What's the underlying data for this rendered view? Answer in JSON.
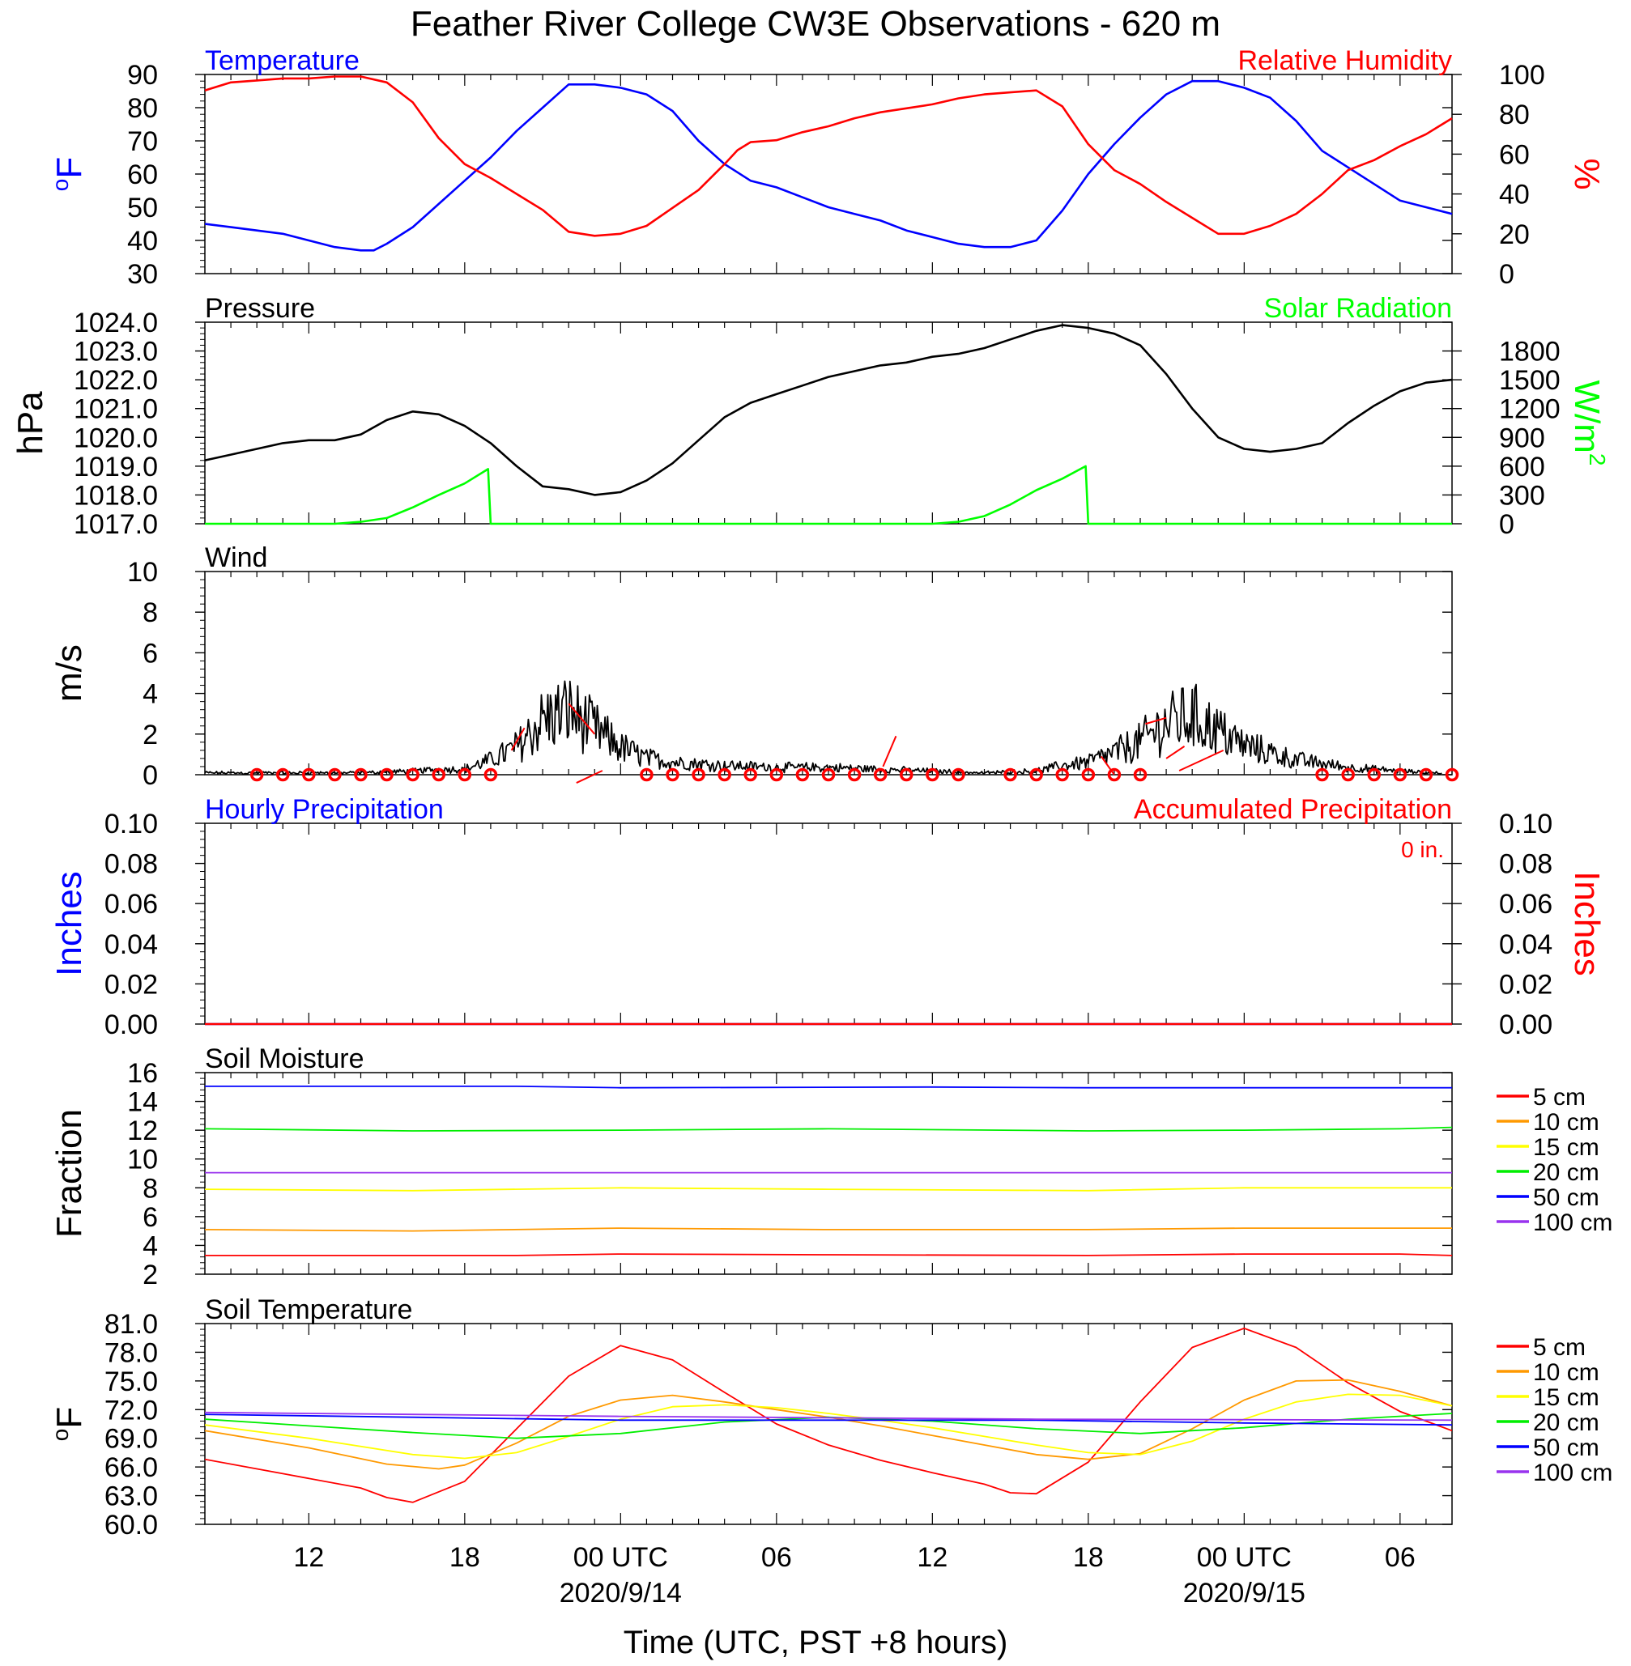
{
  "figure": {
    "title": "Feather River College CW3E Observations - 620 m",
    "xlabel": "Time (UTC, PST +8 hours)",
    "time_ticks": [
      {
        "t": 6,
        "label": "12",
        "date": ""
      },
      {
        "t": 12,
        "label": "18",
        "date": ""
      },
      {
        "t": 18,
        "label": "00 UTC",
        "date": "2020/9/14"
      },
      {
        "t": 24,
        "label": "06",
        "date": ""
      },
      {
        "t": 30,
        "label": "12",
        "date": ""
      },
      {
        "t": 36,
        "label": "18",
        "date": ""
      },
      {
        "t": 42,
        "label": "00 UTC",
        "date": "2020/9/15"
      },
      {
        "t": 48,
        "label": "06",
        "date": ""
      }
    ]
  },
  "colors": {
    "temperature": "#0000ff",
    "humidity": "#ff0000",
    "pressure": "#000000",
    "solar": "#00ff00",
    "wind": "#000000",
    "barb": "#ff0000",
    "calm": "#ff0000",
    "hourly_precip": "#0000ff",
    "accum_precip": "#ff0000",
    "depth_5cm": "#ff0000",
    "depth_10cm": "#ff9900",
    "depth_15cm": "#ffff00",
    "depth_20cm": "#00ee00",
    "depth_50cm": "#0000ff",
    "depth_100cm": "#9933ee"
  },
  "chart_data": [
    {
      "id": "temp_rh",
      "type": "line",
      "title_left": "Temperature",
      "title_right": "Relative Humidity",
      "ylabel_left": "oF",
      "ylabel_right": "%",
      "ylim_left": [
        30,
        90
      ],
      "ylim_right": [
        0,
        100
      ],
      "yticks_left": [
        "30",
        "40",
        "50",
        "60",
        "70",
        "80",
        "90"
      ],
      "yticks_right": [
        "0",
        "20",
        "40",
        "60",
        "80",
        "100"
      ],
      "series": [
        {
          "name": "Temperature",
          "axis": "left",
          "x": [
            2,
            3,
            4,
            5,
            6,
            7,
            8,
            8.5,
            9,
            10,
            11,
            12,
            13,
            14,
            15,
            16,
            17,
            18,
            19,
            20,
            21,
            22,
            23,
            24,
            25,
            26,
            27,
            28,
            29,
            30,
            31,
            32,
            33,
            34,
            35,
            36,
            37,
            38,
            39,
            40,
            41,
            42,
            43,
            44,
            45,
            46,
            47,
            48,
            49,
            50
          ],
          "y": [
            45,
            44,
            43,
            42,
            40,
            38,
            37,
            37,
            39,
            44,
            51,
            58,
            65,
            73,
            80,
            87,
            87,
            86,
            84,
            79,
            70,
            63,
            58,
            56,
            53,
            50,
            48,
            46,
            43,
            41,
            39,
            38,
            38,
            40,
            49,
            60,
            69,
            77,
            84,
            88,
            88,
            86,
            83,
            76,
            67,
            62,
            57,
            52,
            50,
            48
          ]
        },
        {
          "name": "Relative Humidity",
          "axis": "right",
          "x": [
            2,
            3,
            4,
            5,
            6,
            7,
            8,
            9,
            10,
            11,
            12,
            13,
            14,
            15,
            16,
            17,
            18,
            19,
            20,
            21,
            22,
            22.5,
            23,
            24,
            25,
            26,
            27,
            28,
            29,
            30,
            31,
            32,
            33,
            34,
            35,
            36,
            37,
            38,
            39,
            40,
            41,
            42,
            43,
            44,
            45,
            46,
            47,
            48,
            49,
            50
          ],
          "y": [
            92,
            96,
            97,
            98,
            98,
            99,
            99,
            96,
            86,
            68,
            55,
            48,
            40,
            32,
            21,
            19,
            20,
            24,
            33,
            42,
            55,
            62,
            66,
            67,
            71,
            74,
            78,
            81,
            83,
            85,
            88,
            90,
            91,
            92,
            84,
            65,
            52,
            45,
            36,
            28,
            20,
            20,
            24,
            30,
            40,
            52,
            57,
            64,
            70,
            78
          ]
        }
      ]
    },
    {
      "id": "pressure_solar",
      "type": "line",
      "title_left": "Pressure",
      "title_right": "Solar Radiation",
      "ylabel_left": "hPa",
      "ylabel_right": "W/m2",
      "ylim_left": [
        1017,
        1024
      ],
      "ylim_right": [
        0,
        2100
      ],
      "yticks_left": [
        "1017.0",
        "1018.0",
        "1019.0",
        "1020.0",
        "1021.0",
        "1022.0",
        "1023.0",
        "1024.0"
      ],
      "yticks_right": [
        "0",
        "300",
        "600",
        "900",
        "1200",
        "1500",
        "1800"
      ],
      "series": [
        {
          "name": "Pressure",
          "axis": "left",
          "x": [
            2,
            3,
            4,
            5,
            6,
            7,
            8,
            9,
            10,
            11,
            12,
            13,
            14,
            15,
            16,
            17,
            18,
            19,
            20,
            21,
            22,
            23,
            24,
            25,
            26,
            27,
            28,
            29,
            30,
            31,
            32,
            33,
            34,
            35,
            36,
            37,
            38,
            39,
            40,
            41,
            42,
            43,
            44,
            45,
            46,
            47,
            48,
            49,
            50
          ],
          "y": [
            1019.2,
            1019.4,
            1019.6,
            1019.8,
            1019.9,
            1019.9,
            1020.1,
            1020.6,
            1020.9,
            1020.8,
            1020.4,
            1019.8,
            1019.0,
            1018.3,
            1018.2,
            1018.0,
            1018.1,
            1018.5,
            1019.1,
            1019.9,
            1020.7,
            1021.2,
            1021.5,
            1021.8,
            1022.1,
            1022.3,
            1022.5,
            1022.6,
            1022.8,
            1022.9,
            1023.1,
            1023.4,
            1023.7,
            1023.9,
            1023.8,
            1023.6,
            1023.2,
            1022.2,
            1021.0,
            1020.0,
            1019.6,
            1019.5,
            1019.6,
            1019.8,
            1020.5,
            1021.1,
            1021.6,
            1021.9,
            1022.0
          ]
        },
        {
          "name": "Solar Radiation",
          "axis": "right",
          "x": [
            2,
            7,
            8,
            9,
            10,
            11,
            12,
            12.9,
            13,
            20.5,
            30,
            31,
            32,
            33,
            34,
            35,
            35.9,
            36,
            45,
            50
          ],
          "y": [
            0,
            0,
            20,
            60,
            170,
            300,
            420,
            570,
            0,
            0,
            0,
            20,
            80,
            200,
            350,
            470,
            600,
            0,
            0,
            0
          ]
        }
      ]
    },
    {
      "id": "wind",
      "type": "line",
      "title_left": "Wind",
      "ylabel_left": "m/s",
      "ylim_left": [
        0,
        10
      ],
      "yticks_left": [
        "0",
        "2",
        "4",
        "6",
        "8",
        "10"
      ],
      "series": [
        {
          "name": "Wind speed",
          "axis": "left",
          "x": [
            2,
            4,
            6,
            8,
            10,
            11,
            12,
            13,
            14,
            15,
            16,
            17,
            18,
            19,
            20,
            22,
            24,
            26,
            28,
            30,
            32,
            34,
            35,
            36,
            37,
            38,
            39,
            40,
            41,
            42,
            43,
            44,
            45,
            46,
            48,
            49
          ],
          "y": [
            0.1,
            0.1,
            0.1,
            0.1,
            0.2,
            0.3,
            0.3,
            0.8,
            1.5,
            3.0,
            3.5,
            2.5,
            1.5,
            0.9,
            0.7,
            0.5,
            0.4,
            0.4,
            0.3,
            0.2,
            0.1,
            0.2,
            0.5,
            0.7,
            1.2,
            1.8,
            2.8,
            3.2,
            2.4,
            1.6,
            1.2,
            0.8,
            0.6,
            0.4,
            0.2,
            0.1
          ]
        }
      ],
      "calm_hours": [
        4,
        5,
        6,
        7,
        8,
        9,
        10,
        11,
        12,
        13,
        19,
        20,
        21,
        22,
        23,
        24,
        25,
        26,
        27,
        28,
        29,
        30,
        31,
        33,
        34,
        35,
        36,
        37,
        38,
        45,
        46,
        47,
        48,
        49,
        50
      ]
    },
    {
      "id": "precip",
      "type": "line",
      "title_left": "Hourly Precipitation",
      "title_right": "Accumulated Precipitation",
      "annotation": "0 in.",
      "ylabel_left": "Inches",
      "ylabel_right": "Inches",
      "ylim_left": [
        0,
        0.1
      ],
      "ylim_right": [
        0,
        0.1
      ],
      "yticks_left": [
        "0.00",
        "0.02",
        "0.04",
        "0.06",
        "0.08",
        "0.10"
      ],
      "yticks_right": [
        "0.00",
        "0.02",
        "0.04",
        "0.06",
        "0.08",
        "0.10"
      ],
      "series": [
        {
          "name": "Hourly Precipitation",
          "axis": "left",
          "x": [
            2,
            50
          ],
          "y": [
            0,
            0
          ]
        },
        {
          "name": "Accumulated Precipitation",
          "axis": "right",
          "x": [
            2,
            50
          ],
          "y": [
            0,
            0
          ]
        }
      ]
    },
    {
      "id": "soil_moisture",
      "type": "line",
      "title_left": "Soil Moisture",
      "ylabel_left": "Fraction",
      "ylim_left": [
        2,
        16
      ],
      "yticks_left": [
        "2",
        "4",
        "6",
        "8",
        "10",
        "12",
        "14",
        "16"
      ],
      "legend": [
        "5 cm",
        "10 cm",
        "15 cm",
        "20 cm",
        "50 cm",
        "100 cm"
      ],
      "series": [
        {
          "name": "5 cm",
          "axis": "left",
          "x": [
            2,
            14,
            18,
            26,
            36,
            42,
            48,
            50
          ],
          "y": [
            3.3,
            3.3,
            3.4,
            3.35,
            3.3,
            3.4,
            3.4,
            3.3
          ]
        },
        {
          "name": "10 cm",
          "axis": "left",
          "x": [
            2,
            10,
            18,
            26,
            36,
            42,
            48,
            50
          ],
          "y": [
            5.1,
            5.0,
            5.2,
            5.1,
            5.1,
            5.2,
            5.2,
            5.2
          ]
        },
        {
          "name": "15 cm",
          "axis": "left",
          "x": [
            2,
            10,
            18,
            26,
            36,
            42,
            48,
            50
          ],
          "y": [
            7.9,
            7.8,
            8.0,
            7.9,
            7.8,
            8.0,
            8.0,
            8.0
          ]
        },
        {
          "name": "20 cm",
          "axis": "left",
          "x": [
            2,
            10,
            18,
            26,
            36,
            42,
            48,
            50
          ],
          "y": [
            12.1,
            11.95,
            12.0,
            12.1,
            11.95,
            12.0,
            12.1,
            12.2
          ]
        },
        {
          "name": "50 cm",
          "axis": "left",
          "x": [
            2,
            14,
            18,
            30,
            36,
            42,
            50
          ],
          "y": [
            15.05,
            15.05,
            14.95,
            15.0,
            14.95,
            14.95,
            14.95
          ]
        },
        {
          "name": "100 cm",
          "axis": "left",
          "x": [
            2,
            50
          ],
          "y": [
            9.05,
            9.05
          ]
        }
      ]
    },
    {
      "id": "soil_temp",
      "type": "line",
      "title_left": "Soil Temperature",
      "ylabel_left": "oF",
      "ylim_left": [
        60,
        81
      ],
      "yticks_left": [
        "60.0",
        "63.0",
        "66.0",
        "69.0",
        "72.0",
        "75.0",
        "78.0",
        "81.0"
      ],
      "legend": [
        "5 cm",
        "10 cm",
        "15 cm",
        "20 cm",
        "50 cm",
        "100 cm"
      ],
      "series": [
        {
          "name": "5 cm",
          "axis": "left",
          "x": [
            2,
            5,
            8,
            9,
            10,
            12,
            14,
            16,
            18,
            20,
            22,
            24,
            26,
            28,
            30,
            32,
            33,
            34,
            36,
            38,
            40,
            42,
            44,
            46,
            48,
            50
          ],
          "y": [
            66.8,
            65.3,
            63.8,
            62.8,
            62.3,
            64.5,
            70.0,
            75.5,
            78.7,
            77.2,
            73.8,
            70.5,
            68.3,
            66.7,
            65.4,
            64.2,
            63.3,
            63.2,
            66.5,
            72.8,
            78.5,
            80.5,
            78.5,
            74.8,
            71.8,
            69.8
          ]
        },
        {
          "name": "10 cm",
          "axis": "left",
          "x": [
            2,
            6,
            9,
            11,
            12,
            14,
            16,
            18,
            20,
            22,
            24,
            26,
            28,
            30,
            32,
            34,
            36,
            38,
            40,
            42,
            44,
            46,
            48,
            50
          ],
          "y": [
            69.8,
            68.0,
            66.3,
            65.8,
            66.2,
            68.5,
            71.3,
            73.0,
            73.5,
            72.8,
            72.0,
            71.2,
            70.3,
            69.3,
            68.3,
            67.3,
            66.8,
            67.4,
            70.0,
            73.0,
            75.0,
            75.1,
            73.9,
            72.4
          ]
        },
        {
          "name": "15 cm",
          "axis": "left",
          "x": [
            2,
            6,
            10,
            12,
            14,
            16,
            18,
            20,
            22,
            24,
            26,
            28,
            30,
            32,
            34,
            36,
            38,
            40,
            42,
            44,
            46,
            48,
            50
          ],
          "y": [
            70.4,
            69.0,
            67.3,
            66.9,
            67.5,
            69.2,
            71.0,
            72.3,
            72.5,
            72.2,
            71.6,
            70.9,
            70.1,
            69.2,
            68.3,
            67.5,
            67.3,
            68.7,
            71.0,
            72.8,
            73.6,
            73.5,
            72.4
          ]
        },
        {
          "name": "20 cm",
          "axis": "left",
          "x": [
            2,
            6,
            10,
            14,
            18,
            22,
            26,
            30,
            34,
            38,
            42,
            46,
            50
          ],
          "y": [
            71.0,
            70.3,
            69.6,
            69.0,
            69.5,
            70.7,
            71.2,
            70.8,
            70.0,
            69.5,
            70.1,
            71.0,
            71.6
          ]
        },
        {
          "name": "50 cm",
          "axis": "left",
          "x": [
            2,
            10,
            18,
            26,
            34,
            42,
            50
          ],
          "y": [
            71.5,
            71.2,
            70.9,
            70.9,
            70.9,
            70.6,
            70.4
          ]
        },
        {
          "name": "100 cm",
          "axis": "left",
          "x": [
            2,
            18,
            34,
            50
          ],
          "y": [
            71.7,
            71.3,
            71.0,
            70.9
          ]
        }
      ]
    }
  ]
}
